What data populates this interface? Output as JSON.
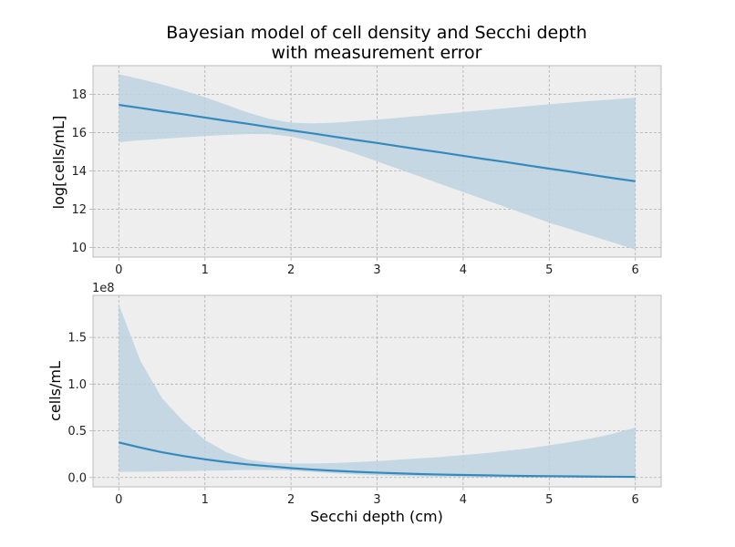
{
  "figure": {
    "title_line1": "Bayesian model of cell density and Secchi depth",
    "title_line2": "with measurement error"
  },
  "colors": {
    "line": "#348abd",
    "band": "#bcd2e0",
    "panel_bg": "#eeeeee"
  },
  "chart_data": [
    {
      "type": "line",
      "title": "",
      "xlabel": "",
      "ylabel": "log[cells/mL]",
      "xlim": [
        -0.3,
        6.3
      ],
      "ylim": [
        9.5,
        19.5
      ],
      "xticks": [
        0,
        1,
        2,
        3,
        4,
        5,
        6
      ],
      "yticks": [
        10,
        12,
        14,
        16,
        18
      ],
      "ytick_labels": [
        "10",
        "12",
        "14",
        "16",
        "18"
      ],
      "offset_label": "",
      "grid": true,
      "x": [
        0,
        0.25,
        0.5,
        0.75,
        1,
        1.25,
        1.5,
        1.75,
        2,
        2.25,
        2.5,
        2.75,
        3,
        3.25,
        3.5,
        3.75,
        4,
        4.25,
        4.5,
        4.75,
        5,
        5.25,
        5.5,
        5.75,
        6
      ],
      "series": [
        {
          "values": [
            17.45,
            17.29,
            17.12,
            16.96,
            16.79,
            16.62,
            16.46,
            16.29,
            16.12,
            15.96,
            15.79,
            15.62,
            15.46,
            15.29,
            15.12,
            14.96,
            14.79,
            14.62,
            14.46,
            14.29,
            14.12,
            13.96,
            13.79,
            13.62,
            13.46
          ],
          "lower": [
            15.5,
            15.6,
            15.68,
            15.75,
            15.82,
            15.88,
            15.93,
            15.92,
            15.8,
            15.55,
            15.25,
            14.9,
            14.5,
            14.1,
            13.7,
            13.3,
            12.9,
            12.5,
            12.1,
            11.7,
            11.3,
            10.95,
            10.6,
            10.25,
            9.9
          ],
          "upper": [
            19.05,
            18.8,
            18.52,
            18.2,
            17.85,
            17.45,
            17.05,
            16.72,
            16.52,
            16.48,
            16.52,
            16.6,
            16.68,
            16.78,
            16.88,
            16.98,
            17.08,
            17.18,
            17.28,
            17.38,
            17.48,
            17.57,
            17.66,
            17.74,
            17.82
          ]
        }
      ]
    },
    {
      "type": "line",
      "title": "",
      "xlabel": "Secchi depth (cm)",
      "ylabel": "cells/mL",
      "xlim": [
        -0.3,
        6.3
      ],
      "ylim": [
        -0.1,
        1.95
      ],
      "xticks": [
        0,
        1,
        2,
        3,
        4,
        5,
        6
      ],
      "yticks": [
        0,
        0.5,
        1.0,
        1.5
      ],
      "ytick_labels": [
        "0.0",
        "0.5",
        "1.0",
        "1.5"
      ],
      "offset_label": "1e8",
      "grid": true,
      "x": [
        0,
        0.25,
        0.5,
        0.75,
        1,
        1.25,
        1.5,
        1.75,
        2,
        2.25,
        2.5,
        2.75,
        3,
        3.25,
        3.5,
        3.75,
        4,
        4.25,
        4.5,
        4.75,
        5,
        5.25,
        5.5,
        5.75,
        6
      ],
      "series": [
        {
          "values": [
            0.375,
            0.32,
            0.27,
            0.23,
            0.195,
            0.165,
            0.14,
            0.12,
            0.1,
            0.085,
            0.072,
            0.061,
            0.052,
            0.044,
            0.037,
            0.031,
            0.027,
            0.023,
            0.019,
            0.016,
            0.014,
            0.012,
            0.01,
            0.008,
            0.007
          ],
          "lower": [
            0.06,
            0.062,
            0.065,
            0.068,
            0.072,
            0.076,
            0.08,
            0.08,
            0.075,
            0.06,
            0.045,
            0.033,
            0.024,
            0.017,
            0.012,
            0.008,
            0.005,
            0.004,
            0.003,
            0.002,
            0.0015,
            0.001,
            0.0008,
            0.0006,
            0.0004
          ],
          "upper": [
            1.85,
            1.25,
            0.85,
            0.6,
            0.4,
            0.27,
            0.19,
            0.16,
            0.15,
            0.15,
            0.155,
            0.165,
            0.175,
            0.19,
            0.205,
            0.22,
            0.24,
            0.26,
            0.285,
            0.31,
            0.345,
            0.38,
            0.42,
            0.47,
            0.535
          ]
        }
      ]
    }
  ]
}
